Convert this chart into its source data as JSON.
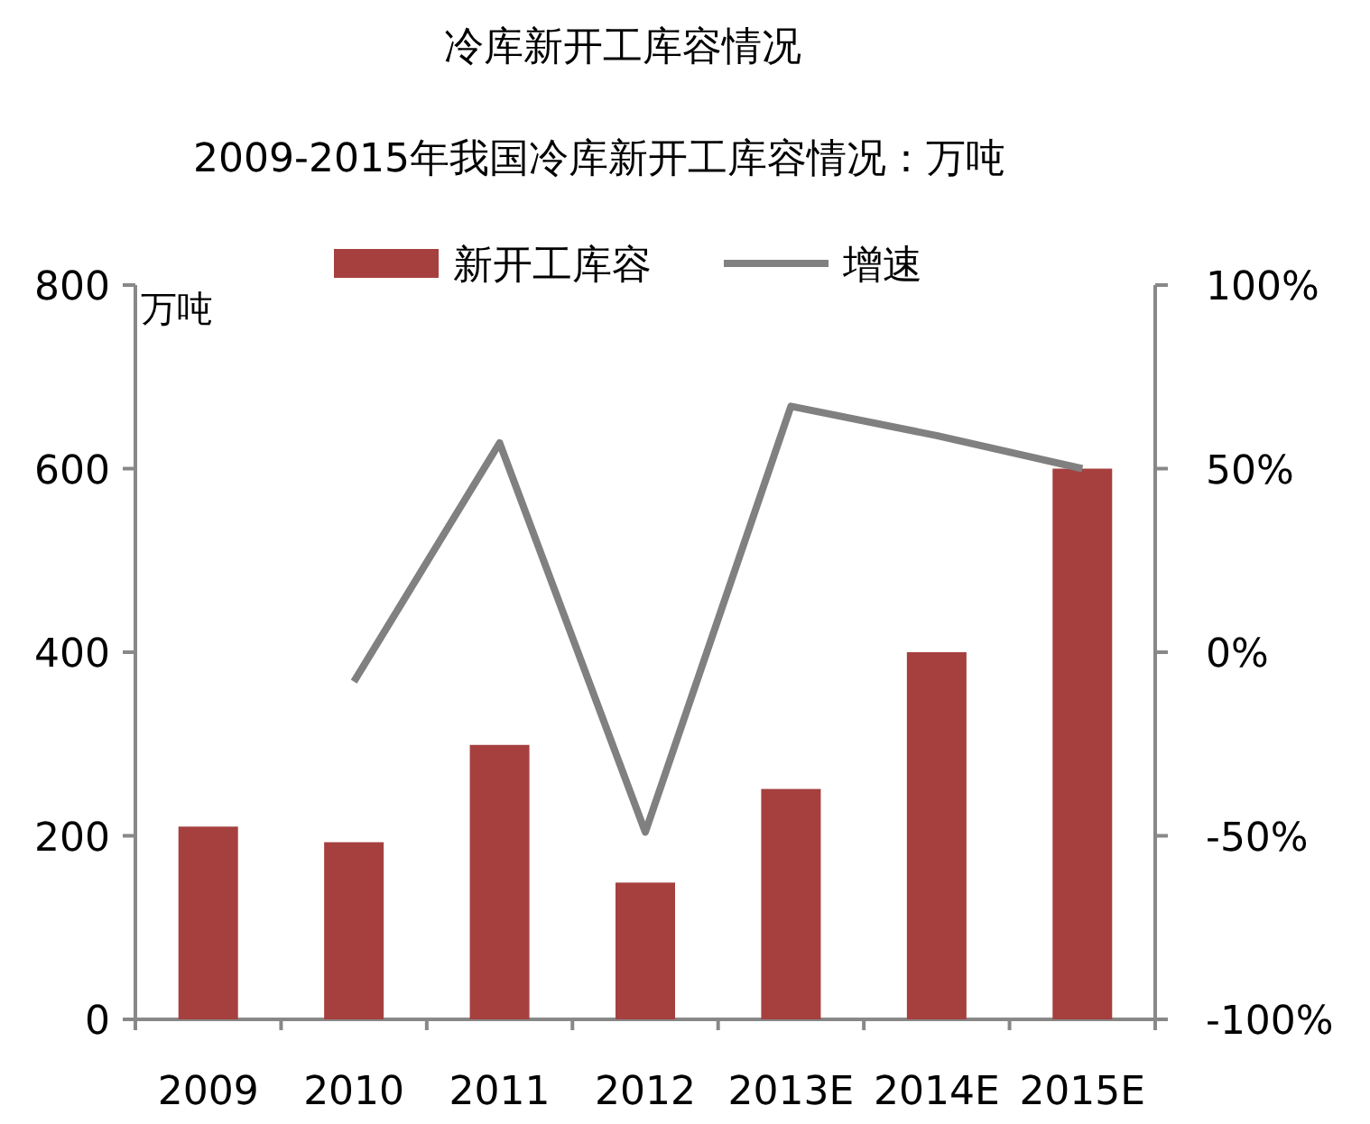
{
  "chart_data": {
    "type": "bar",
    "title": "冷库新开工库容情况",
    "subtitle": "2009-2015年我国冷库新开工库容情况：万吨",
    "ylabel": "万吨",
    "categories": [
      "2009",
      "2010",
      "2011",
      "2012",
      "2013E",
      "2014E",
      "2015E"
    ],
    "series": [
      {
        "name": "新开工库容",
        "color": "#a5403f",
        "values": [
          210,
          193,
          299,
          149,
          251,
          400,
          600
        ]
      },
      {
        "name": "增速",
        "type": "line",
        "axis": "y2",
        "color": "#808080",
        "values": [
          null,
          -8,
          57,
          -49,
          67,
          59,
          50
        ]
      }
    ],
    "ylim": [
      0,
      800
    ],
    "yticks": [
      0,
      200,
      400,
      600,
      800
    ],
    "y2lim": [
      -100,
      100
    ],
    "y2ticks": [
      {
        "value": -100,
        "label": "-100%"
      },
      {
        "value": -50,
        "label": "-50%"
      },
      {
        "value": 0,
        "label": "0%"
      },
      {
        "value": 50,
        "label": "50%"
      },
      {
        "value": 100,
        "label": "100%"
      }
    ],
    "legend": "top",
    "grid": false
  }
}
